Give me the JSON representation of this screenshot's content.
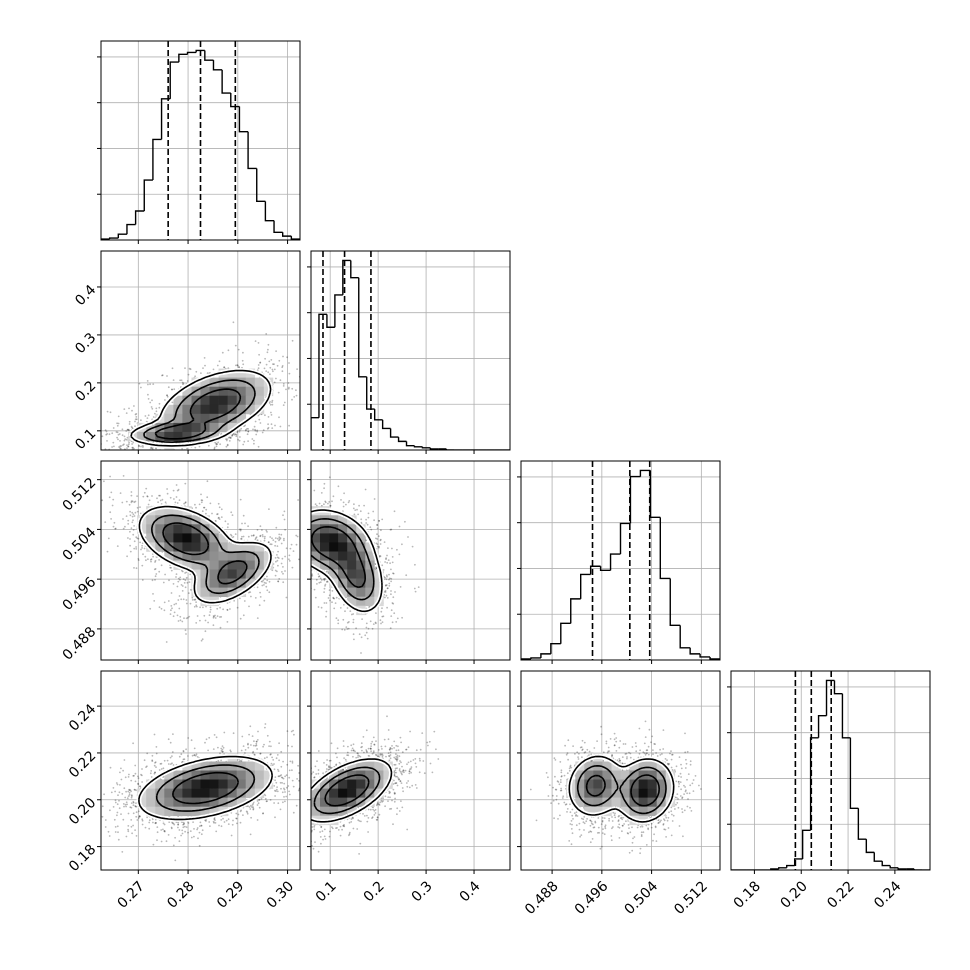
{
  "chart_data": {
    "type": "corner",
    "title": "",
    "params": [
      {
        "name": "",
        "range": [
          0.2625,
          0.3025
        ],
        "ticks": [
          {
            "v": 0.27,
            "label": "0.27"
          },
          {
            "v": 0.28,
            "label": "0.28"
          },
          {
            "v": 0.29,
            "label": "0.29"
          },
          {
            "v": 0.3,
            "label": "0.30"
          }
        ],
        "quantiles": [
          0.276,
          0.2825,
          0.2895
        ],
        "hist": [
          0.5,
          1,
          3,
          8,
          15,
          31,
          52,
          73,
          92,
          96,
          97,
          98,
          93,
          88,
          76,
          69,
          56,
          37,
          20,
          10,
          4,
          2,
          0.5
        ]
      },
      {
        "name": "",
        "range": [
          0.06,
          0.475
        ],
        "ticks": [
          {
            "v": 0.1,
            "label": "0.1"
          },
          {
            "v": 0.2,
            "label": "0.2"
          },
          {
            "v": 0.3,
            "label": "0.3"
          },
          {
            "v": 0.4,
            "label": "0.4"
          }
        ],
        "quantiles": [
          0.085,
          0.13,
          0.185
        ],
        "hist": [
          15,
          63,
          57,
          72,
          88,
          80,
          34,
          19,
          14,
          10,
          6,
          4,
          2,
          1.5,
          1,
          0.5,
          0.5,
          0,
          0,
          0,
          0,
          0,
          0,
          0,
          0
        ]
      },
      {
        "name": "",
        "range": [
          0.483,
          0.515
        ],
        "ticks": [
          {
            "v": 0.488,
            "label": "0.488"
          },
          {
            "v": 0.496,
            "label": "0.496"
          },
          {
            "v": 0.504,
            "label": "0.504"
          },
          {
            "v": 0.512,
            "label": "0.512"
          }
        ],
        "quantiles": [
          0.4945,
          0.5005,
          0.5037
        ],
        "hist": [
          0.5,
          1,
          3,
          8,
          18,
          30,
          42,
          46,
          44,
          52,
          67,
          90,
          93,
          70,
          40,
          17,
          6,
          3,
          1.5,
          0.5
        ]
      },
      {
        "name": "",
        "range": [
          0.17,
          0.255
        ],
        "ticks": [
          {
            "v": 0.18,
            "label": "0.18"
          },
          {
            "v": 0.2,
            "label": "0.20"
          },
          {
            "v": 0.22,
            "label": "0.22"
          },
          {
            "v": 0.24,
            "label": "0.24"
          }
        ],
        "quantiles": [
          0.1975,
          0.2043,
          0.2128
        ],
        "hist": [
          0,
          0,
          0,
          0,
          0,
          0.5,
          1,
          2,
          5,
          18,
          60,
          70,
          86,
          80,
          60,
          28,
          14,
          8,
          4,
          2,
          1,
          0.5,
          0.5,
          0,
          0
        ]
      }
    ],
    "pairs": [
      {
        "x": 0,
        "y": 1,
        "blobs": [
          {
            "cx": 0.2775,
            "cy": 0.095,
            "sx": 0.0045,
            "sy": 0.012,
            "rho": 0.2,
            "w": 0.55
          },
          {
            "cx": 0.2855,
            "cy": 0.155,
            "sx": 0.0055,
            "sy": 0.035,
            "rho": 0.45,
            "w": 0.6
          }
        ]
      },
      {
        "x": 0,
        "y": 2,
        "blobs": [
          {
            "cx": 0.2795,
            "cy": 0.5025,
            "sx": 0.0045,
            "sy": 0.0025,
            "rho": -0.4,
            "w": 0.6
          },
          {
            "cx": 0.289,
            "cy": 0.497,
            "sx": 0.004,
            "sy": 0.0025,
            "rho": 0.55,
            "w": 0.45
          }
        ]
      },
      {
        "x": 0,
        "y": 3,
        "blobs": [
          {
            "cx": 0.2835,
            "cy": 0.205,
            "sx": 0.0065,
            "sy": 0.0065,
            "rho": 0.4,
            "w": 1
          }
        ]
      },
      {
        "x": 1,
        "y": 2,
        "blobs": [
          {
            "cx": 0.1,
            "cy": 0.502,
            "sx": 0.04,
            "sy": 0.0025,
            "rho": -0.2,
            "w": 0.6
          },
          {
            "cx": 0.155,
            "cy": 0.4965,
            "sx": 0.028,
            "sy": 0.003,
            "rho": -0.3,
            "w": 0.45
          }
        ]
      },
      {
        "x": 1,
        "y": 3,
        "blobs": [
          {
            "cx": 0.135,
            "cy": 0.204,
            "sx": 0.045,
            "sy": 0.0065,
            "rho": 0.55,
            "w": 1
          }
        ]
      },
      {
        "x": 2,
        "y": 3,
        "blobs": [
          {
            "cx": 0.495,
            "cy": 0.206,
            "sx": 0.0022,
            "sy": 0.0065,
            "rho": 0.1,
            "w": 0.45
          },
          {
            "cx": 0.503,
            "cy": 0.204,
            "sx": 0.0022,
            "sy": 0.0065,
            "rho": 0.1,
            "w": 0.6
          }
        ]
      }
    ],
    "contour_levels": [
      0.12,
      0.32,
      0.6
    ],
    "grid": true
  }
}
